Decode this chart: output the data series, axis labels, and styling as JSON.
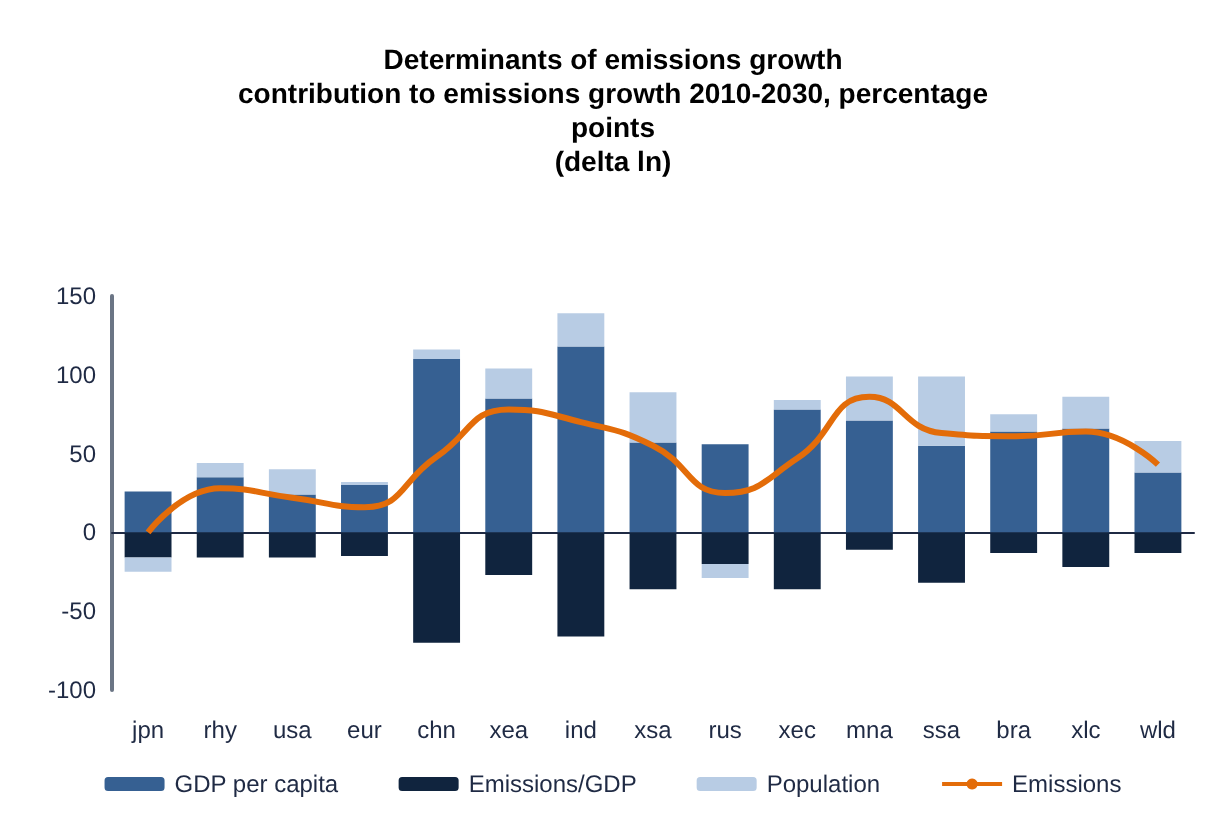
{
  "chart_data": {
    "type": "bar",
    "title": "Determinants of emissions growth\ncontribution to emissions growth 2010-2030, percentage\npoints\n(delta ln)",
    "categories": [
      "jpn",
      "rhy",
      "usa",
      "eur",
      "chn",
      "xea",
      "ind",
      "xsa",
      "rus",
      "xec",
      "mna",
      "ssa",
      "bra",
      "xlc",
      "wld"
    ],
    "stacked": true,
    "series": [
      {
        "name": "GDP per capita",
        "color": "#366092",
        "values": [
          26,
          35,
          24,
          30,
          110,
          85,
          118,
          57,
          56,
          78,
          71,
          55,
          64,
          66,
          38
        ]
      },
      {
        "name": "Emissions/GDP",
        "color": "#10243e",
        "values": [
          -16,
          -16,
          -16,
          -15,
          -70,
          -27,
          -66,
          -36,
          -20,
          -36,
          -11,
          -32,
          -13,
          -22,
          -13
        ]
      },
      {
        "name": "Population",
        "color": "#b8cce4",
        "values": [
          -9,
          9,
          16,
          2,
          6,
          19,
          21,
          32,
          -9,
          6,
          28,
          44,
          11,
          20,
          20
        ]
      },
      {
        "name": "Emissions",
        "type": "line",
        "color": "#e36c09",
        "values": [
          0,
          28,
          22,
          16,
          48,
          78,
          70,
          55,
          25,
          47,
          86,
          63,
          61,
          64,
          43
        ]
      }
    ],
    "ylim": [
      -100,
      150
    ],
    "yticks": [
      -100,
      -50,
      0,
      50,
      100,
      150
    ],
    "legend": "bottom",
    "marker": "none",
    "line_style": "solid"
  }
}
